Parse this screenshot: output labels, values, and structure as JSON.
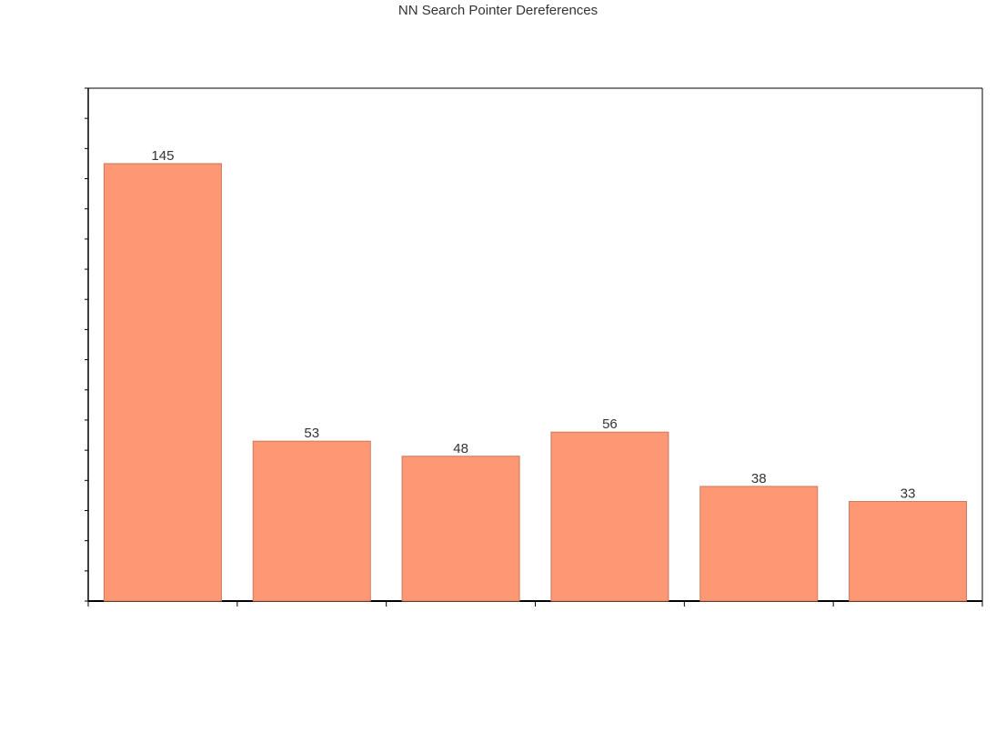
{
  "chart_data": {
    "type": "bar",
    "title": "NN Search Pointer Dereferences",
    "categories": [
      "",
      "",
      "",
      "",
      "",
      ""
    ],
    "values": [
      145,
      53,
      48,
      56,
      38,
      33
    ],
    "xlabel": "",
    "ylabel": "",
    "ylim": [
      0,
      170
    ],
    "grid": false,
    "legend": "none",
    "colors": {
      "bar": "#fe9773",
      "bar_edge": "#c9785f",
      "axis": "#000000"
    }
  }
}
